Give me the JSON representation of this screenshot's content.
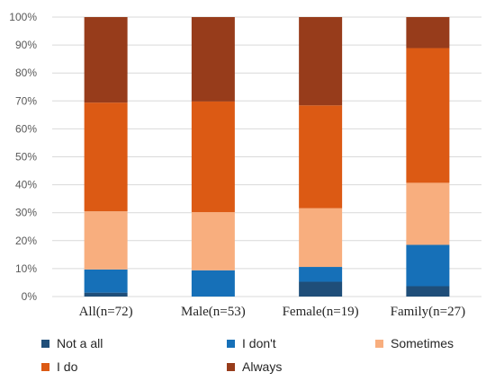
{
  "chart_data": {
    "type": "bar",
    "stacked": true,
    "percent": true,
    "categories": [
      "All(n=72)",
      "Male(n=53)",
      "Female(n=19)",
      "Family(n=27)"
    ],
    "series": [
      {
        "name": "Not a  all",
        "color": "#1f4e79",
        "values": [
          1.4,
          0.0,
          5.3,
          3.7
        ]
      },
      {
        "name": "I don't",
        "color": "#1670b8",
        "values": [
          8.3,
          9.4,
          5.3,
          14.8
        ]
      },
      {
        "name": "Sometimes",
        "color": "#f8ae7e",
        "values": [
          20.8,
          20.8,
          21.0,
          22.2
        ]
      },
      {
        "name": "I do",
        "color": "#dc5a14",
        "values": [
          38.9,
          39.6,
          36.8,
          48.2
        ]
      },
      {
        "name": "Always",
        "color": "#973c1b",
        "values": [
          30.6,
          30.2,
          31.6,
          11.1
        ]
      }
    ],
    "ylim": [
      0,
      100
    ],
    "yticks": [
      "0%",
      "10%",
      "20%",
      "30%",
      "40%",
      "50%",
      "60%",
      "70%",
      "80%",
      "90%",
      "100%"
    ],
    "grid": true,
    "legend_position": "bottom"
  }
}
